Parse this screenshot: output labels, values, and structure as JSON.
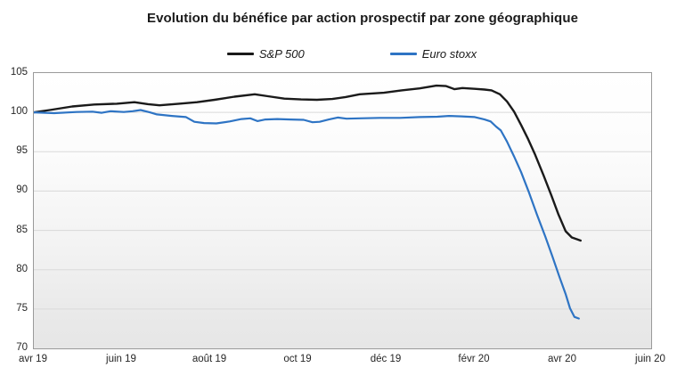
{
  "title": "Evolution du bénéfice par action prospectif par zone géographique",
  "legend": [
    {
      "label": "S&P 500",
      "color": "#1a1a1a"
    },
    {
      "label": "Euro stoxx",
      "color": "#2e74c4"
    }
  ],
  "colors": {
    "sp500": "#1a1a1a",
    "eurostoxx": "#2e74c4",
    "gridline": "#d9d9d9",
    "plot_border": "#9a9a9a"
  },
  "chart_data": {
    "type": "line",
    "title": "Evolution du bénéfice par action prospectif par zone géographique",
    "xlabel": "",
    "ylabel": "",
    "x_axis": {
      "tick_labels": [
        "avr 19",
        "juin 19",
        "août 19",
        "oct 19",
        "déc 19",
        "févr 20",
        "avr 20",
        "juin 20"
      ],
      "range_months": [
        0,
        14
      ],
      "note": "x unit = months after avr 2019 tick; data ends mid-April 2020"
    },
    "y_axis": {
      "ticks": [
        105,
        100,
        95,
        90,
        85,
        80,
        75,
        70
      ],
      "range": [
        70,
        105
      ]
    },
    "grid": "horizontal",
    "legend_position": "top",
    "series": [
      {
        "name": "S&P 500",
        "color": "#1a1a1a",
        "width": 2.4,
        "points": [
          [
            0,
            100
          ],
          [
            0.36,
            100.3
          ],
          [
            0.87,
            100.75
          ],
          [
            1.37,
            101
          ],
          [
            1.88,
            101.1
          ],
          [
            2.28,
            101.3
          ],
          [
            2.59,
            101.05
          ],
          [
            2.85,
            100.9
          ],
          [
            3.29,
            101.1
          ],
          [
            3.7,
            101.3
          ],
          [
            4.1,
            101.6
          ],
          [
            4.55,
            102
          ],
          [
            5.01,
            102.3
          ],
          [
            5.31,
            102.05
          ],
          [
            5.68,
            101.75
          ],
          [
            6.06,
            101.65
          ],
          [
            6.42,
            101.6
          ],
          [
            6.77,
            101.7
          ],
          [
            7.07,
            101.95
          ],
          [
            7.39,
            102.3
          ],
          [
            7.94,
            102.5
          ],
          [
            8.34,
            102.8
          ],
          [
            8.75,
            103.05
          ],
          [
            9.13,
            103.4
          ],
          [
            9.35,
            103.35
          ],
          [
            9.54,
            102.95
          ],
          [
            9.72,
            103.1
          ],
          [
            10,
            103
          ],
          [
            10.22,
            102.9
          ],
          [
            10.38,
            102.8
          ],
          [
            10.57,
            102.3
          ],
          [
            10.73,
            101.4
          ],
          [
            10.89,
            100.1
          ],
          [
            11.05,
            98.4
          ],
          [
            11.21,
            96.6
          ],
          [
            11.37,
            94.6
          ],
          [
            11.56,
            92
          ],
          [
            11.74,
            89.4
          ],
          [
            11.9,
            87
          ],
          [
            12.06,
            84.9
          ],
          [
            12.2,
            84.1
          ],
          [
            12.3,
            83.9
          ],
          [
            12.4,
            83.7
          ]
        ]
      },
      {
        "name": "Euro stoxx",
        "color": "#2e74c4",
        "width": 2.2,
        "points": [
          [
            0,
            100
          ],
          [
            0.46,
            99.9
          ],
          [
            0.97,
            100.05
          ],
          [
            1.33,
            100.1
          ],
          [
            1.54,
            99.95
          ],
          [
            1.74,
            100.15
          ],
          [
            2.04,
            100.05
          ],
          [
            2.24,
            100.15
          ],
          [
            2.42,
            100.3
          ],
          [
            2.63,
            100
          ],
          [
            2.79,
            99.75
          ],
          [
            3.13,
            99.55
          ],
          [
            3.45,
            99.4
          ],
          [
            3.64,
            98.8
          ],
          [
            3.86,
            98.65
          ],
          [
            4.14,
            98.6
          ],
          [
            4.44,
            98.85
          ],
          [
            4.71,
            99.15
          ],
          [
            4.91,
            99.25
          ],
          [
            5.07,
            98.9
          ],
          [
            5.25,
            99.1
          ],
          [
            5.52,
            99.15
          ],
          [
            5.82,
            99.1
          ],
          [
            6.12,
            99.05
          ],
          [
            6.32,
            98.75
          ],
          [
            6.48,
            98.8
          ],
          [
            6.69,
            99.1
          ],
          [
            6.89,
            99.35
          ],
          [
            7.09,
            99.2
          ],
          [
            7.39,
            99.25
          ],
          [
            7.84,
            99.3
          ],
          [
            8.3,
            99.3
          ],
          [
            8.75,
            99.4
          ],
          [
            9.15,
            99.45
          ],
          [
            9.41,
            99.55
          ],
          [
            9.7,
            99.5
          ],
          [
            10,
            99.4
          ],
          [
            10.22,
            99.1
          ],
          [
            10.36,
            98.85
          ],
          [
            10.48,
            98.2
          ],
          [
            10.59,
            97.7
          ],
          [
            10.73,
            96.3
          ],
          [
            10.89,
            94.4
          ],
          [
            11.05,
            92.4
          ],
          [
            11.23,
            89.8
          ],
          [
            11.41,
            87
          ],
          [
            11.6,
            84.2
          ],
          [
            11.76,
            81.7
          ],
          [
            11.92,
            79.1
          ],
          [
            12.06,
            76.9
          ],
          [
            12.16,
            75.1
          ],
          [
            12.26,
            74
          ],
          [
            12.36,
            73.8
          ]
        ]
      }
    ]
  }
}
